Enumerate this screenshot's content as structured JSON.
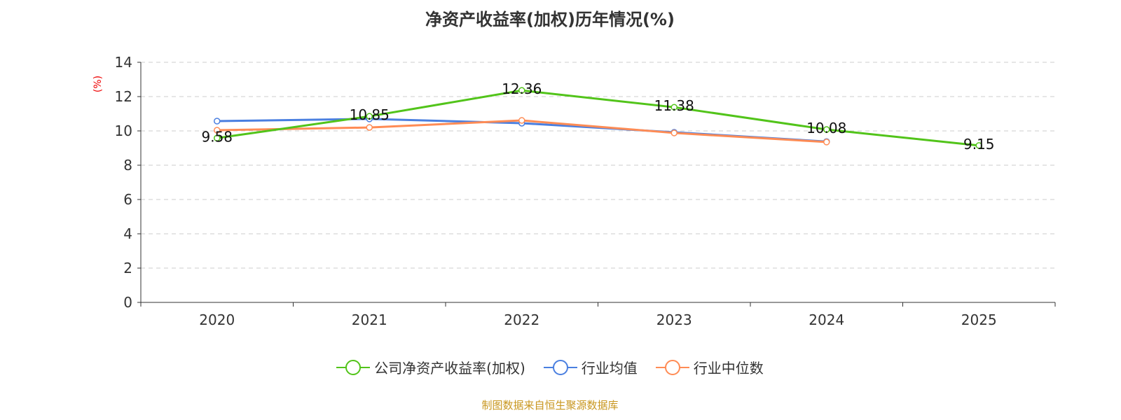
{
  "chart_data": {
    "type": "line",
    "title": "净资产收益率(加权)历年情况(%)",
    "ylabel": "(%)",
    "categories": [
      "2020",
      "2021",
      "2022",
      "2023",
      "2024",
      "2025"
    ],
    "ylim": [
      0,
      14
    ],
    "yticks": [
      0,
      2,
      4,
      6,
      8,
      10,
      12,
      14
    ],
    "grid": true,
    "legend_position": "bottom",
    "series": [
      {
        "name": "公司净资产收益率(加权)",
        "color": "#52c41a",
        "values": [
          9.58,
          10.85,
          12.36,
          11.38,
          10.08,
          9.15
        ],
        "labels": [
          "9.58",
          "10.85",
          "12.36",
          "11.38",
          "10.08",
          "9.15"
        ]
      },
      {
        "name": "行业均值",
        "color": "#4a7fe0",
        "values": [
          10.57,
          10.7,
          10.45,
          9.92,
          9.38,
          null
        ]
      },
      {
        "name": "行业中位数",
        "color": "#ff8c55",
        "values": [
          10.04,
          10.2,
          10.61,
          9.88,
          9.35,
          null
        ]
      }
    ]
  },
  "source": "制图数据来自恒生聚源数据库"
}
